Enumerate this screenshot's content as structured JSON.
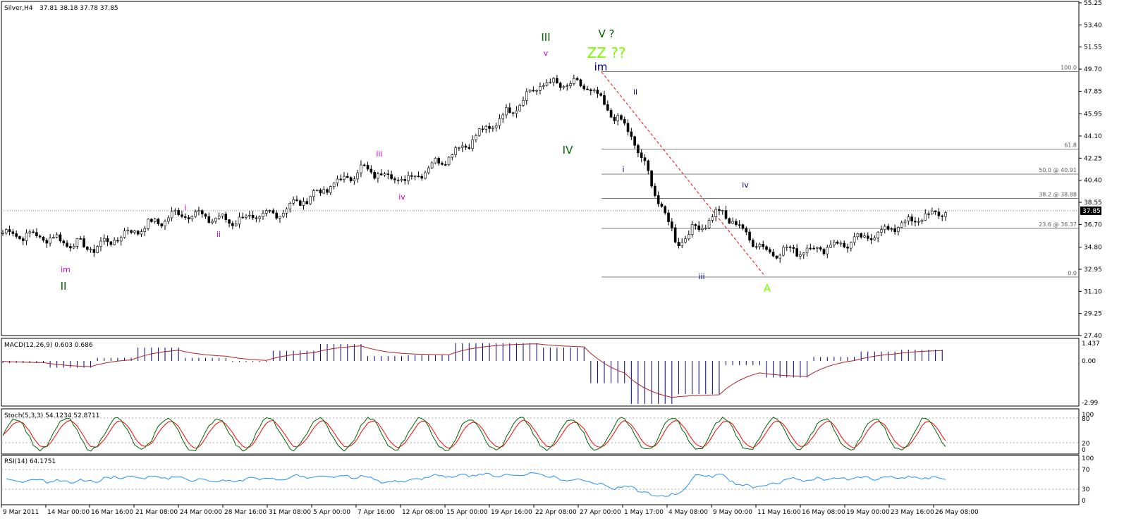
{
  "header": {
    "symbol_label": "Silver,H4",
    "ohlc": "37.81 38.18 37.78 37.85"
  },
  "price_axis": {
    "ticks": [
      "55.25",
      "53.40",
      "51.55",
      "49.70",
      "47.85",
      "45.95",
      "44.10",
      "42.25",
      "40.40",
      "38.55",
      "36.70",
      "34.80",
      "32.95",
      "31.10",
      "29.25",
      "27.40"
    ],
    "tick_values": [
      55.25,
      53.4,
      51.55,
      49.7,
      47.85,
      45.95,
      44.1,
      42.25,
      40.4,
      38.55,
      36.7,
      34.8,
      32.95,
      31.1,
      29.25,
      27.4
    ],
    "current_price": "37.85",
    "current_value": 37.85,
    "range": [
      27.4,
      55.25
    ]
  },
  "time_axis": {
    "labels": [
      "9 Mar 2011",
      "14 Mar 00:00",
      "16 Mar 16:00",
      "21 Mar 08:00",
      "24 Mar 00:00",
      "28 Mar 16:00",
      "31 Mar 08:00",
      "5 Apr 00:00",
      "7 Apr 16:00",
      "12 Apr 08:00",
      "15 Apr 00:00",
      "19 Apr 16:00",
      "22 Apr 08:00",
      "27 Apr 00:00",
      "1 May 17:00",
      "4 May 08:00",
      "9 May 00:00",
      "11 May 16:00",
      "16 May 08:00",
      "19 May 00:00",
      "23 May 16:00",
      "26 May 08:00"
    ]
  },
  "fibonacci": {
    "levels": [
      {
        "label": "100.0",
        "value": 49.5
      },
      {
        "label": "61.8",
        "value": 43.0
      },
      {
        "label": "50.0 @ 40.91",
        "value": 40.91
      },
      {
        "label": "38.2 @ 38.88",
        "value": 38.88
      },
      {
        "label": "23.6 @ 36.37",
        "value": 36.37
      },
      {
        "label": "0.0",
        "value": 32.3
      }
    ]
  },
  "wave_labels": [
    {
      "text": "III",
      "color": "#006400",
      "size": "big"
    },
    {
      "text": "V ?",
      "color": "#006400",
      "size": "big"
    },
    {
      "text": "ZZ ??",
      "color": "#7cfc00",
      "size": "huge"
    },
    {
      "text": "im",
      "color": "#000080",
      "size": "big"
    },
    {
      "text": "v",
      "color": "#cc00cc",
      "size": "small"
    },
    {
      "text": "IV",
      "color": "#006400",
      "size": "big"
    },
    {
      "text": "ii",
      "color": "#000080",
      "size": "small"
    },
    {
      "text": "i",
      "color": "#000080",
      "size": "small"
    },
    {
      "text": "iii",
      "color": "#cc00cc",
      "size": "small"
    },
    {
      "text": "iv",
      "color": "#cc00cc",
      "size": "small"
    },
    {
      "text": "i",
      "color": "#cc00cc",
      "size": "small"
    },
    {
      "text": "ii",
      "color": "#cc00cc",
      "size": "small"
    },
    {
      "text": "im",
      "color": "#cc00cc",
      "size": "small"
    },
    {
      "text": "II",
      "color": "#006400",
      "size": "big"
    },
    {
      "text": "iv",
      "color": "#000080",
      "size": "small"
    },
    {
      "text": "iii",
      "color": "#000080",
      "size": "small"
    },
    {
      "text": "A",
      "color": "#7cfc00",
      "size": "big"
    }
  ],
  "macd": {
    "label": "MACD(12,26,9) 0.603 0.686",
    "ticks": [
      "1.437",
      "0.00",
      "-2.99"
    ]
  },
  "stoch": {
    "label": "Stoch(5,3,3) 54.1234 52.8711",
    "ticks": [
      "100",
      "80",
      "20",
      "0"
    ]
  },
  "rsi": {
    "label": "RSI(14) 64.1751",
    "ticks": [
      "100",
      "70",
      "30",
      "0"
    ]
  },
  "colors": {
    "up_candle": "#ffffff",
    "down_candle": "#000000",
    "fib_line": "#808080",
    "trend_dashed": "#ff0000",
    "macd_hist": "#000080",
    "macd_signal": "#b22222",
    "stoch_main": "#006400",
    "stoch_signal": "#ff0000",
    "rsi_line": "#1e90ff"
  },
  "chart_data": {
    "type": "candlestick",
    "title": "",
    "symbol": "Silver",
    "timeframe": "H4",
    "close_path": [
      {
        "x": "9 Mar 2011",
        "y": 36.0
      },
      {
        "x": "14 Mar 00:00",
        "y": 35.6
      },
      {
        "x": "16 Mar 16:00",
        "y": 34.7
      },
      {
        "x": "21 Mar 08:00",
        "y": 36.3
      },
      {
        "x": "24 Mar 00:00",
        "y": 37.7
      },
      {
        "x": "28 Mar 16:00",
        "y": 37.0
      },
      {
        "x": "31 Mar 08:00",
        "y": 37.5
      },
      {
        "x": "5 Apr 00:00",
        "y": 39.3
      },
      {
        "x": "7 Apr 16:00",
        "y": 41.3
      },
      {
        "x": "12 Apr 08:00",
        "y": 40.4
      },
      {
        "x": "15 Apr 00:00",
        "y": 42.6
      },
      {
        "x": "19 Apr 16:00",
        "y": 45.3
      },
      {
        "x": "22 Apr 08:00",
        "y": 48.5
      },
      {
        "x": "27 Apr 00:00",
        "y": 48.3
      },
      {
        "x": "1 May 17:00",
        "y": 44.2
      },
      {
        "x": "4 May 08:00",
        "y": 35.2
      },
      {
        "x": "9 May 00:00",
        "y": 37.8
      },
      {
        "x": "11 May 16:00",
        "y": 34.4
      },
      {
        "x": "16 May 08:00",
        "y": 34.6
      },
      {
        "x": "19 May 00:00",
        "y": 35.3
      },
      {
        "x": "23 May 16:00",
        "y": 36.7
      },
      {
        "x": "26 May 08:00",
        "y": 37.85
      }
    ],
    "ylim": [
      27.4,
      55.25
    ],
    "grid": false,
    "indicators": [
      "MACD(12,26,9)",
      "Stoch(5,3,3)",
      "RSI(14)"
    ]
  }
}
